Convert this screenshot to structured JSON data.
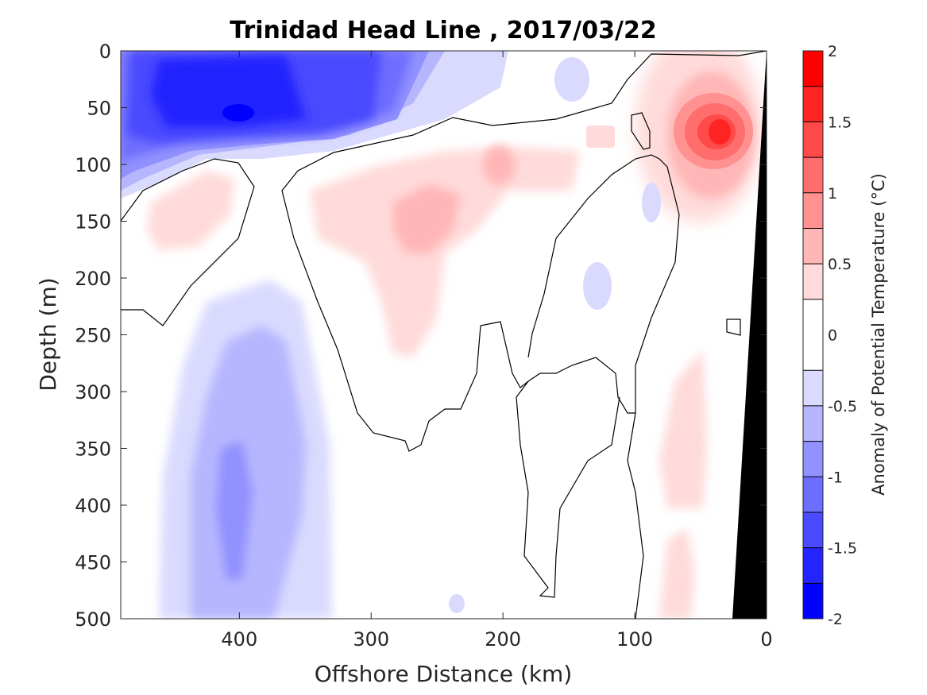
{
  "chart_data": {
    "type": "heatmap",
    "title": "Trinidad Head Line , 2017/03/22",
    "xlabel": "Offshore Distance (km)",
    "ylabel": "Depth (m)",
    "xlim": [
      490,
      0
    ],
    "ylim": [
      0,
      500
    ],
    "x_direction": "reversed",
    "y_direction": "downward",
    "x_ticks": [
      400,
      300,
      200,
      100,
      0
    ],
    "y_ticks": [
      0,
      50,
      100,
      150,
      200,
      250,
      300,
      350,
      400,
      450,
      500
    ],
    "colorbar": {
      "label": "Anomaly of Potential Temperature (°C)",
      "range": [
        -2,
        2
      ],
      "ticks": [
        2,
        1.5,
        1,
        0.5,
        0,
        -0.5,
        -1,
        -1.5,
        -2
      ],
      "levels": [
        -2,
        -1.75,
        -1.5,
        -1.25,
        -1,
        -0.75,
        -0.5,
        -0.25,
        0.25,
        0.5,
        0.75,
        1,
        1.25,
        1.5,
        1.75,
        2
      ],
      "colors": [
        "#0000ff",
        "#2424ff",
        "#4a4aff",
        "#6d6dff",
        "#9191ff",
        "#b6b6ff",
        "#dadaff",
        "#ffffff",
        "#ffdada",
        "#ffb6b6",
        "#ff9191",
        "#ff6d6d",
        "#ff4a4a",
        "#ff2424",
        "#ff0000"
      ]
    },
    "features": [
      {
        "name": "cold core",
        "x_range": [
          490,
          300
        ],
        "depth_range": [
          0,
          130
        ],
        "min_anomaly": -1.75,
        "center": [
          400,
          55
        ]
      },
      {
        "name": "warm nearshore core",
        "x_range": [
          100,
          10
        ],
        "depth_range": [
          0,
          160
        ],
        "max_anomaly": 1.5,
        "center": [
          35,
          75
        ]
      },
      {
        "name": "subsurface warm band",
        "x_range": [
          340,
          160
        ],
        "depth_range": [
          80,
          270
        ],
        "max_anomaly": 0.75,
        "center": [
          255,
          140
        ]
      },
      {
        "name": "deep cold column",
        "x_range": [
          440,
          330
        ],
        "depth_range": [
          200,
          500
        ],
        "min_anomaly": -1.0,
        "center": [
          390,
          400
        ]
      },
      {
        "name": "deep warm strip",
        "x_range": [
          95,
          50
        ],
        "depth_range": [
          260,
          500
        ],
        "max_anomaly": 0.5
      },
      {
        "name": "bathymetry",
        "x_range": [
          30,
          0
        ],
        "depth_range": [
          0,
          500
        ],
        "color": "#000000"
      }
    ]
  }
}
